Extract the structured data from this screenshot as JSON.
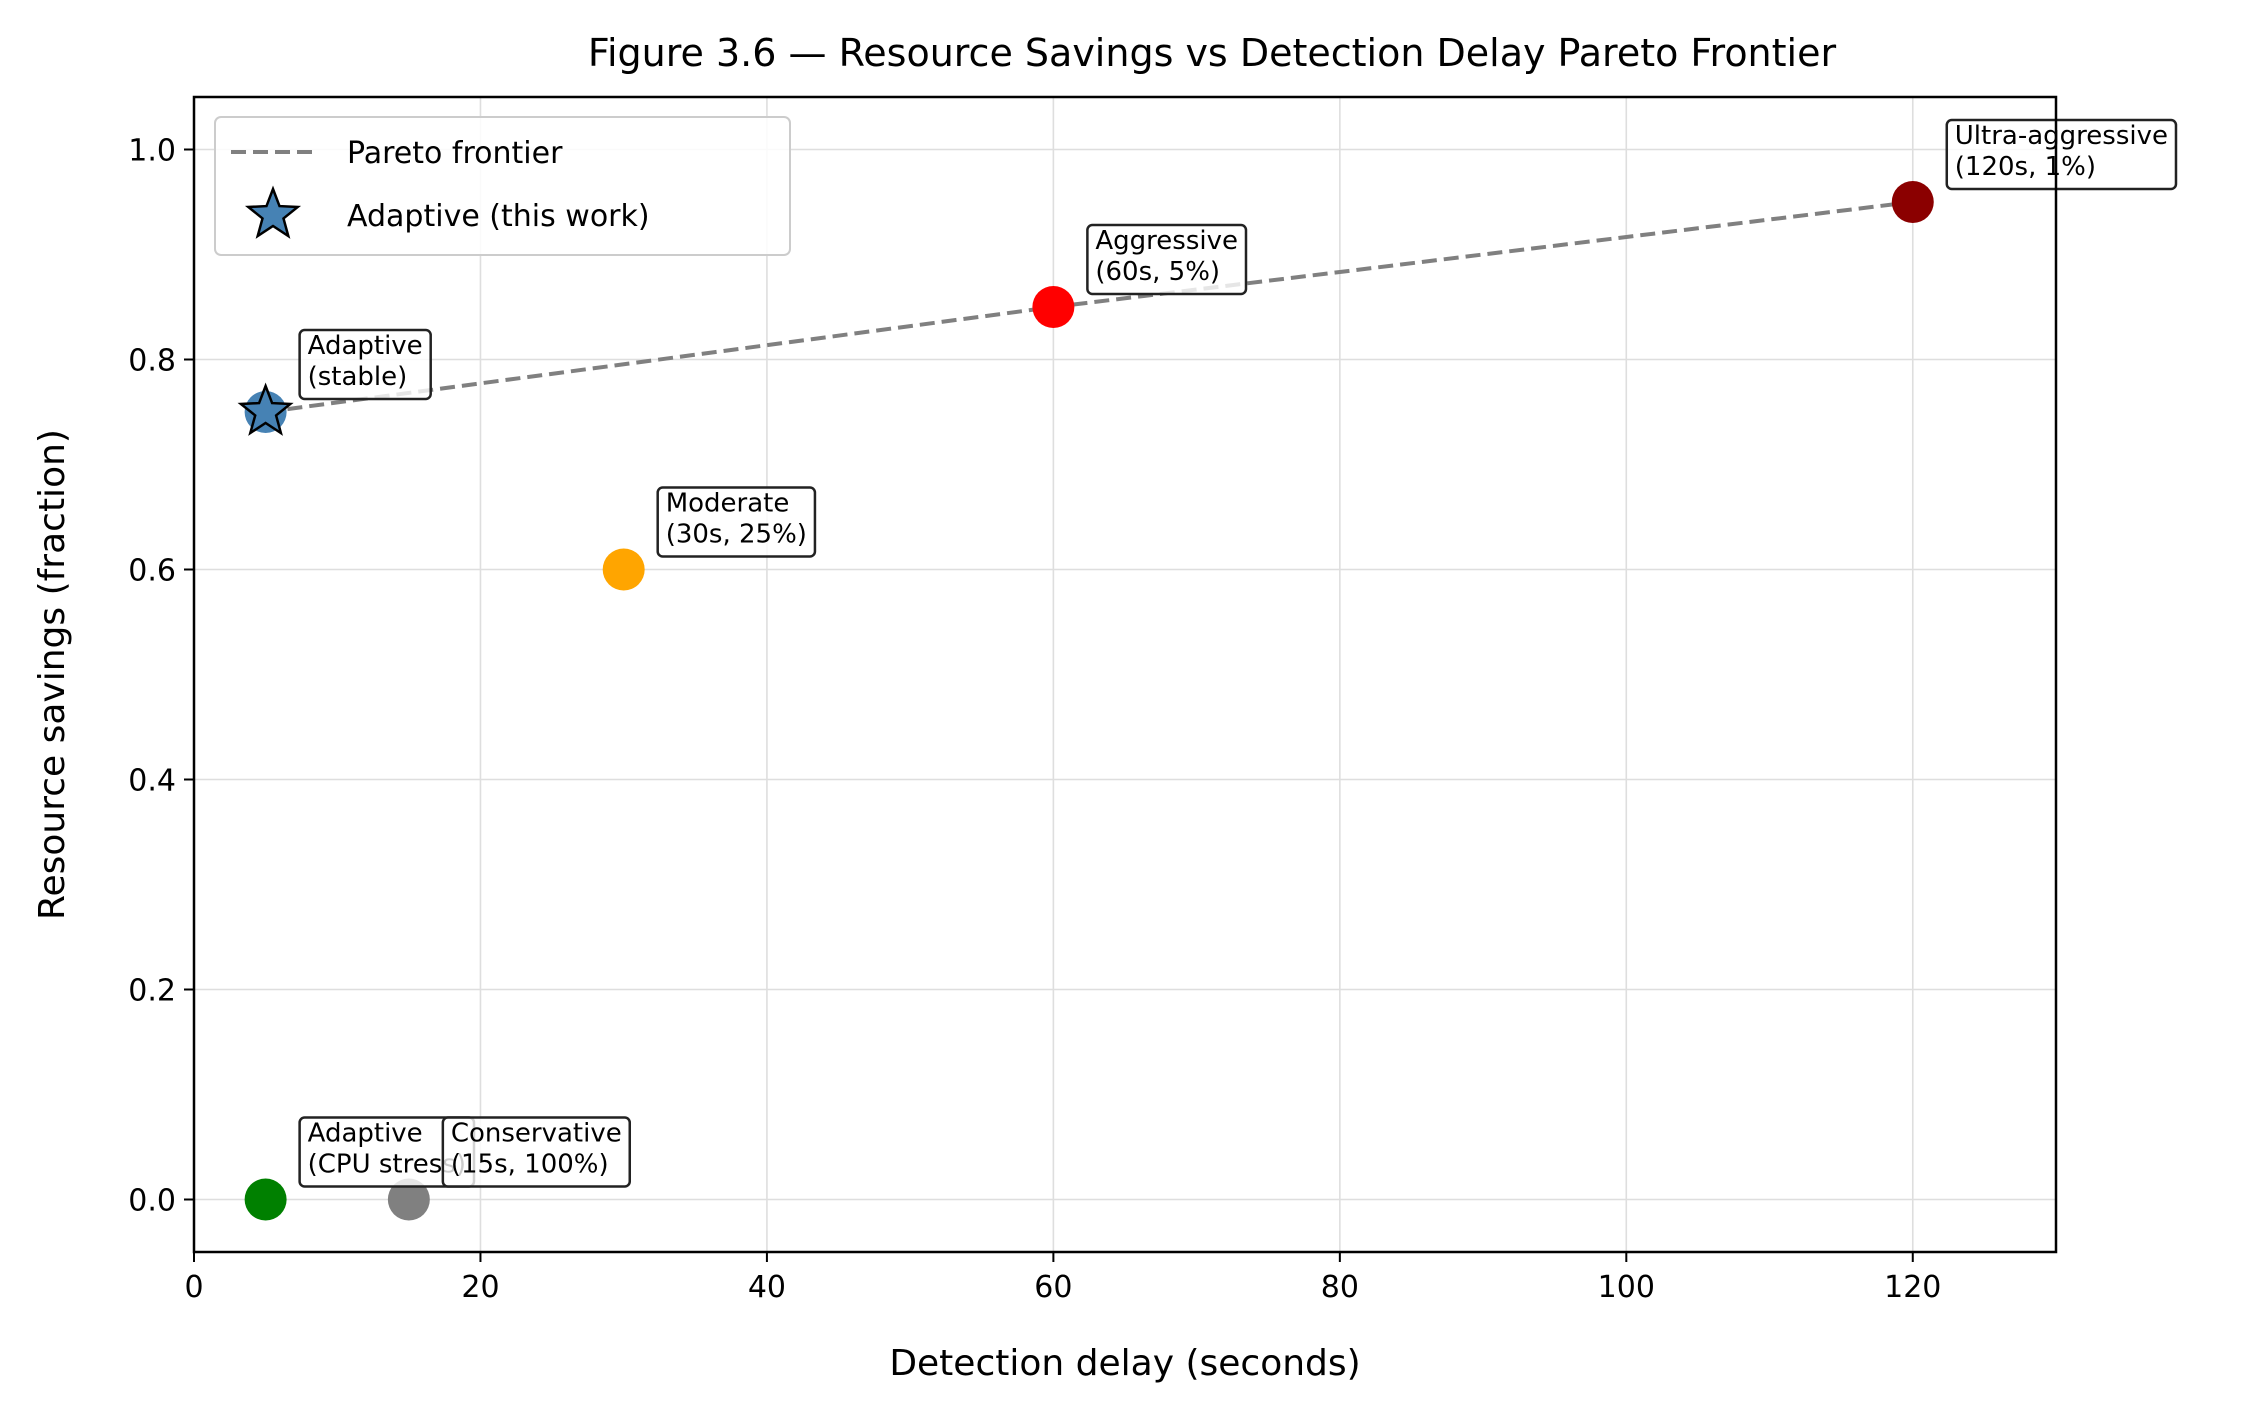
{
  "chart_data": {
    "type": "scatter",
    "title": "Figure 3.6 — Resource Savings vs Detection Delay Pareto Frontier",
    "xlabel": "Detection delay (seconds)",
    "ylabel": "Resource savings (fraction)",
    "xlim": [
      0,
      130
    ],
    "ylim": [
      -0.05,
      1.05
    ],
    "xticks": [
      0,
      20,
      40,
      60,
      80,
      100,
      120
    ],
    "yticks": [
      0.0,
      0.2,
      0.4,
      0.6,
      0.8,
      1.0
    ],
    "xtick_labels": [
      "0",
      "20",
      "40",
      "60",
      "80",
      "100",
      "120"
    ],
    "ytick_labels": [
      "0.0",
      "0.2",
      "0.4",
      "0.6",
      "0.8",
      "1.0"
    ],
    "grid": true,
    "legend_position": "upper-left",
    "legend": [
      {
        "label": "Pareto frontier",
        "marker": "dashed-line",
        "color": "#808080"
      },
      {
        "label": "Adaptive (this work)",
        "marker": "star",
        "color": "#4682b4"
      }
    ],
    "frontier": {
      "name": "Pareto frontier",
      "color": "#808080",
      "x": [
        5,
        60,
        120
      ],
      "y": [
        0.75,
        0.85,
        0.95
      ]
    },
    "points": [
      {
        "x": 5,
        "y": 0.0,
        "color": "#008000",
        "annotation": [
          "Adaptive",
          "(CPU stress)"
        ]
      },
      {
        "x": 15,
        "y": 0.0,
        "color": "#808080",
        "annotation": [
          "Conservative",
          "(15s, 100%)"
        ]
      },
      {
        "x": 30,
        "y": 0.6,
        "color": "#ffa500",
        "annotation": [
          "Moderate",
          "(30s, 25%)"
        ]
      },
      {
        "x": 60,
        "y": 0.85,
        "color": "#ff0000",
        "annotation": [
          "Aggressive",
          "(60s, 5%)"
        ]
      },
      {
        "x": 120,
        "y": 0.95,
        "color": "#8b0000",
        "annotation": [
          "Ultra-aggressive",
          "(120s, 1%)"
        ]
      },
      {
        "x": 5,
        "y": 0.75,
        "color": "#4682b4",
        "annotation": [
          "Adaptive",
          "(stable)"
        ]
      }
    ],
    "adaptive_star": {
      "name": "Adaptive (this work)",
      "x": 5,
      "y": 0.75,
      "color": "#4682b4"
    }
  }
}
